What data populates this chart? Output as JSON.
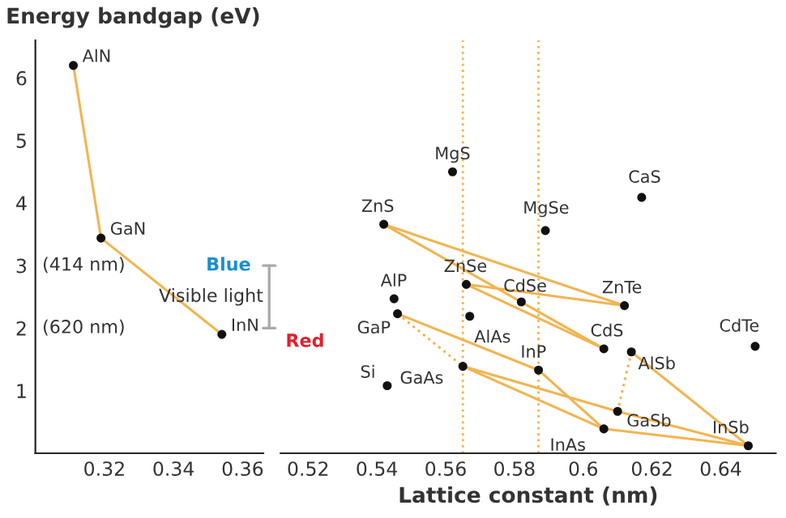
{
  "chart_data": [
    {
      "type": "scatter",
      "ylabel": "Energy bandgap (eV)",
      "xlim": [
        0.3,
        0.366
      ],
      "xticks": [
        0.32,
        0.34,
        0.36
      ],
      "ylim": [
        0,
        6.6
      ],
      "yticks": [
        1,
        2,
        3,
        4,
        5,
        6
      ],
      "grid": false,
      "legend": false,
      "series": [
        {
          "type": "line",
          "color": "#f2b450",
          "line_style": "solid",
          "x": [
            0.311,
            0.319,
            0.354
          ],
          "values": [
            6.2,
            3.44,
            1.9
          ]
        },
        {
          "color": "#111111",
          "marker": "circle",
          "x": [
            0.311,
            0.319,
            0.354
          ],
          "values": [
            6.2,
            3.44,
            1.9
          ]
        }
      ],
      "annotations": [
        {
          "text": "AlN",
          "x": 0.311,
          "y": 6.2
        },
        {
          "text": "GaN",
          "x": 0.319,
          "y": 3.44
        },
        {
          "text": "InN",
          "x": 0.354,
          "y": 1.9
        },
        "(414 nm)",
        "(620 nm)"
      ]
    },
    {
      "type": "scatter",
      "xlabel": "Lattice constant (nm)",
      "xlim": [
        0.512,
        0.656
      ],
      "xticks": [
        0.52,
        0.54,
        0.56,
        0.58,
        0.6,
        0.62,
        0.64
      ],
      "ylim": [
        0,
        6.6
      ],
      "tick_labels": "x",
      "grid": false,
      "legend": false,
      "series": [
        {
          "type": "line",
          "color": "#f2b450",
          "line_style": "solid",
          "x": [
            0.542,
            0.612
          ],
          "values": [
            3.66,
            2.36
          ]
        },
        {
          "type": "line",
          "color": "#f2b450",
          "line_style": "solid",
          "x": [
            0.542,
            0.606
          ],
          "values": [
            3.66,
            1.67
          ]
        },
        {
          "type": "line",
          "color": "#f2b450",
          "line_style": "solid",
          "x": [
            0.566,
            0.612
          ],
          "values": [
            2.7,
            2.36
          ]
        },
        {
          "type": "line",
          "color": "#f2b450",
          "line_style": "solid",
          "x": [
            0.566,
            0.606
          ],
          "values": [
            2.7,
            1.67
          ]
        },
        {
          "type": "line",
          "color": "#f2b450",
          "line_style": "solid",
          "x": [
            0.546,
            0.587
          ],
          "values": [
            2.23,
            1.33
          ]
        },
        {
          "type": "line",
          "color": "#f2b450",
          "line_style": "dotted",
          "x": [
            0.546,
            0.565
          ],
          "values": [
            2.23,
            1.39
          ]
        },
        {
          "type": "line",
          "color": "#f2b450",
          "line_style": "solid",
          "x": [
            0.565,
            0.606
          ],
          "values": [
            1.39,
            0.39
          ]
        },
        {
          "type": "line",
          "color": "#f2b450",
          "line_style": "solid",
          "x": [
            0.565,
            0.61
          ],
          "values": [
            1.39,
            0.67
          ]
        },
        {
          "type": "line",
          "color": "#f2b450",
          "line_style": "solid",
          "x": [
            0.587,
            0.606
          ],
          "values": [
            1.33,
            0.39
          ]
        },
        {
          "type": "line",
          "color": "#f2b450",
          "line_style": "solid",
          "x": [
            0.606,
            0.648
          ],
          "values": [
            0.39,
            0.12
          ]
        },
        {
          "type": "line",
          "color": "#f2b450",
          "line_style": "solid",
          "x": [
            0.61,
            0.648
          ],
          "values": [
            0.67,
            0.12
          ]
        },
        {
          "type": "line",
          "color": "#f2b450",
          "line_style": "solid",
          "x": [
            0.614,
            0.648
          ],
          "values": [
            1.62,
            0.12
          ]
        },
        {
          "type": "line",
          "color": "#f2b450",
          "line_style": "dotted",
          "x": [
            0.614,
            0.61
          ],
          "values": [
            1.62,
            0.67
          ]
        },
        {
          "color": "#111111",
          "marker": "circle",
          "x": [
            0.562,
            0.617,
            0.589,
            0.542,
            0.566,
            0.582,
            0.612,
            0.545,
            0.546,
            0.567,
            0.606,
            0.614,
            0.65,
            0.587,
            0.565,
            0.543,
            0.61,
            0.606,
            0.648
          ],
          "values": [
            4.5,
            4.09,
            3.56,
            3.66,
            2.7,
            2.42,
            2.36,
            2.47,
            2.23,
            2.19,
            1.67,
            1.62,
            1.71,
            1.33,
            1.39,
            1.08,
            0.67,
            0.39,
            0.12
          ]
        }
      ],
      "ref_lines": [
        {
          "axis": "x",
          "value": 0.565,
          "color": "#f2b450",
          "line_style": "dotted"
        },
        {
          "axis": "x",
          "value": 0.587,
          "color": "#f2b450",
          "line_style": "dotted"
        }
      ],
      "annotations": [
        {
          "text": "MgS",
          "x": 0.562,
          "y": 4.5
        },
        {
          "text": "CaS",
          "x": 0.617,
          "y": 4.09
        },
        {
          "text": "MgSe",
          "x": 0.589,
          "y": 3.56
        },
        {
          "text": "ZnS",
          "x": 0.542,
          "y": 3.66
        },
        {
          "text": "ZnSe",
          "x": 0.566,
          "y": 2.7
        },
        {
          "text": "CdSe",
          "x": 0.582,
          "y": 2.42
        },
        {
          "text": "ZnTe",
          "x": 0.612,
          "y": 2.36
        },
        {
          "text": "AlP",
          "x": 0.545,
          "y": 2.47
        },
        {
          "text": "GaP",
          "x": 0.546,
          "y": 2.23
        },
        {
          "text": "AlAs",
          "x": 0.567,
          "y": 2.19
        },
        {
          "text": "CdS",
          "x": 0.606,
          "y": 1.67
        },
        {
          "text": "AlSb",
          "x": 0.614,
          "y": 1.62
        },
        {
          "text": "CdTe",
          "x": 0.65,
          "y": 1.71
        },
        {
          "text": "InP",
          "x": 0.587,
          "y": 1.33
        },
        {
          "text": "GaAs",
          "x": 0.565,
          "y": 1.39
        },
        {
          "text": "Si",
          "x": 0.543,
          "y": 1.08
        },
        {
          "text": "GaSb",
          "x": 0.61,
          "y": 0.67
        },
        {
          "text": "InAs",
          "x": 0.606,
          "y": 0.39
        },
        {
          "text": "InSb",
          "x": 0.648,
          "y": 0.12
        },
        "Blue",
        "Visible light",
        "Red"
      ]
    }
  ]
}
